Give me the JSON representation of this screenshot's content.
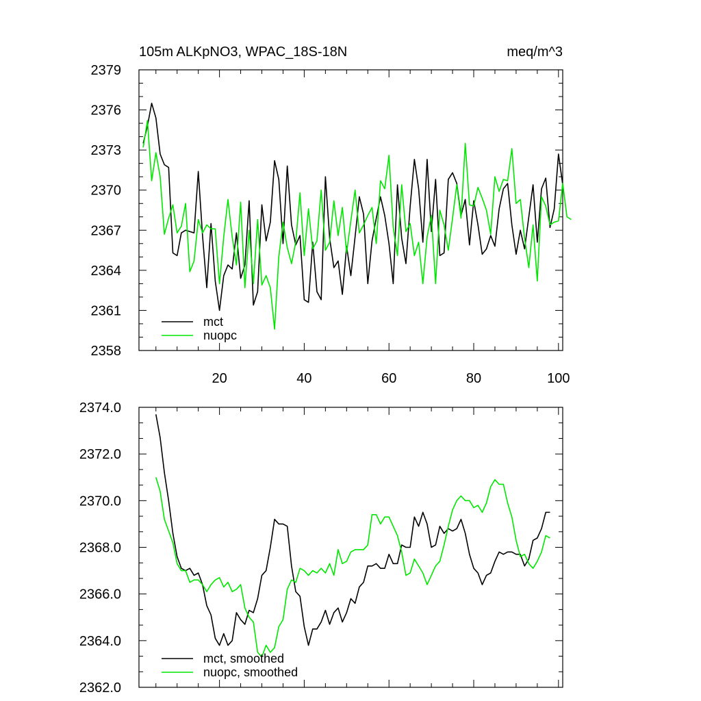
{
  "colors": {
    "mct": "#000000",
    "nuopc": "#00e600"
  },
  "chart_data": [
    {
      "type": "line",
      "title": "105m ALKpNO3, WPAC_18S-18N",
      "units": "meq/m^3",
      "xlim": [
        1,
        101
      ],
      "ylim": [
        2358,
        2379
      ],
      "x_ticks": [
        20,
        40,
        60,
        80,
        100
      ],
      "y_ticks": [
        2358,
        2361,
        2364,
        2367,
        2370,
        2373,
        2376,
        2379
      ],
      "y_tick_labels": [
        "2358",
        "2361",
        "2364",
        "2367",
        "2370",
        "2373",
        "2376",
        "2379"
      ],
      "legend_position": "bottom-left",
      "series": [
        {
          "name": "mct",
          "color": "#000000",
          "x_start": 2,
          "values": [
            2373.5,
            2374.8,
            2376.5,
            2375.4,
            2372.7,
            2371.9,
            2371.7,
            2365.3,
            2365.1,
            2366.8,
            2367.0,
            2366.9,
            2366.8,
            2371.4,
            2366.6,
            2362.7,
            2367.5,
            2363.2,
            2361.0,
            2363.6,
            2364.4,
            2364.1,
            2366.8,
            2363.4,
            2364.4,
            2369.2,
            2361.4,
            2362.4,
            2368.9,
            2366.2,
            2367.6,
            2372.2,
            2370.8,
            2366.0,
            2371.8,
            2367.4,
            2365.9,
            2366.6,
            2361.8,
            2361.6,
            2366.1,
            2362.4,
            2361.8,
            2371.0,
            2366.4,
            2364.2,
            2364.7,
            2362.2,
            2365.8,
            2363.6,
            2366.5,
            2369.5,
            2368.2,
            2363.0,
            2366.2,
            2367.9,
            2369.5,
            2368.1,
            2366.0,
            2363.0,
            2370.4,
            2366.4,
            2364.5,
            2368.8,
            2372.3,
            2370.1,
            2366.1,
            2372.3,
            2366.9,
            2370.8,
            2365.1,
            2365.3,
            2370.8,
            2371.3,
            2370.5,
            2368.1,
            2369.3,
            2365.9,
            2369.2,
            2367.4,
            2365.2,
            2365.6,
            2366.6,
            2365.8,
            2368.6,
            2370.1,
            2370.5,
            2367.4,
            2365.2,
            2367.0,
            2365.6,
            2368.0,
            2370.4,
            2366.1,
            2370.1,
            2370.9,
            2367.2,
            2368.6,
            2372.7,
            2370.4
          ]
        },
        {
          "name": "nuopc",
          "color": "#00e600",
          "x_start": 2,
          "values": [
            2373.2,
            2375.2,
            2370.7,
            2372.8,
            2371.0,
            2366.7,
            2367.9,
            2368.9,
            2366.8,
            2367.3,
            2369.0,
            2363.9,
            2364.7,
            2367.8,
            2366.8,
            2367.4,
            2367.1,
            2367.1,
            2363.0,
            2366.5,
            2369.3,
            2366.5,
            2364.4,
            2369.1,
            2362.7,
            2367.0,
            2363.0,
            2367.8,
            2362.9,
            2363.6,
            2362.7,
            2359.6,
            2365.0,
            2367.6,
            2365.7,
            2364.5,
            2366.1,
            2369.8,
            2365.1,
            2368.6,
            2365.6,
            2366.2,
            2370.0,
            2365.5,
            2366.1,
            2369.2,
            2366.6,
            2368.7,
            2365.3,
            2367.7,
            2370.0,
            2366.8,
            2367.4,
            2368.1,
            2368.7,
            2366.0,
            2370.7,
            2370.1,
            2372.6,
            2367.2,
            2365.1,
            2370.4,
            2366.9,
            2367.5,
            2365.1,
            2366.1,
            2363.0,
            2366.5,
            2368.1,
            2363.0,
            2368.5,
            2367.4,
            2365.5,
            2367.9,
            2370.4,
            2367.9,
            2373.5,
            2368.9,
            2368.8,
            2370.2,
            2369.4,
            2368.5,
            2366.7,
            2371.0,
            2369.9,
            2370.8,
            2370.7,
            2373.1,
            2369.0,
            2369.3,
            2366.4,
            2364.2,
            2367.4,
            2363.2,
            2369.5,
            2368.8,
            2367.4,
            2367.6,
            2367.7,
            2370.5,
            2368.0,
            2367.8
          ]
        }
      ]
    },
    {
      "type": "line",
      "xlim": [
        1,
        101
      ],
      "ylim": [
        2362.0,
        2374.0
      ],
      "x_ticks": [
        20,
        40,
        60,
        80,
        100
      ],
      "y_ticks": [
        2362,
        2364,
        2366,
        2368,
        2370,
        2372,
        2374
      ],
      "y_tick_labels": [
        "2362.0",
        "2364.0",
        "2366.0",
        "2368.0",
        "2370.0",
        "2372.0",
        "2374.0"
      ],
      "legend_position": "bottom-left",
      "series": [
        {
          "name": "mct, smoothed",
          "color": "#000000",
          "x_start": 5,
          "values": [
            2373.7,
            2372.7,
            2371.2,
            2370.0,
            2368.6,
            2367.6,
            2367.1,
            2367.0,
            2367.1,
            2366.8,
            2366.9,
            2366.4,
            2365.5,
            2365.1,
            2364.1,
            2363.8,
            2364.3,
            2363.8,
            2364.0,
            2365.2,
            2364.9,
            2364.7,
            2365.3,
            2365.2,
            2365.8,
            2366.8,
            2367.0,
            2368.0,
            2369.2,
            2369.0,
            2369.0,
            2368.9,
            2367.2,
            2366.1,
            2365.9,
            2364.6,
            2363.8,
            2364.5,
            2364.5,
            2364.8,
            2365.3,
            2364.7,
            2365.2,
            2365.4,
            2364.8,
            2365.2,
            2365.8,
            2365.6,
            2366.3,
            2366.5,
            2367.2,
            2367.2,
            2367.3,
            2367.1,
            2367.1,
            2367.7,
            2367.3,
            2367.3,
            2368.1,
            2368.0,
            2368.0,
            2369.3,
            2368.9,
            2369.5,
            2369.0,
            2368.0,
            2368.1,
            2368.9,
            2368.6,
            2368.8,
            2368.7,
            2368.8,
            2369.2,
            2368.6,
            2367.7,
            2367.1,
            2366.9,
            2366.4,
            2366.8,
            2366.9,
            2367.4,
            2367.8,
            2367.7,
            2367.8,
            2367.8,
            2367.7,
            2367.7,
            2367.2,
            2367.5,
            2368.3,
            2368.4,
            2368.8,
            2369.5,
            2369.5
          ]
        },
        {
          "name": "nuopc, smoothed",
          "color": "#00e600",
          "x_start": 5,
          "values": [
            2371.0,
            2370.4,
            2369.2,
            2368.7,
            2368.2,
            2367.3,
            2367.0,
            2367.0,
            2366.5,
            2366.6,
            2366.6,
            2366.4,
            2366.1,
            2366.4,
            2366.6,
            2366.7,
            2366.3,
            2366.5,
            2366.1,
            2366.2,
            2366.4,
            2365.4,
            2365.0,
            2364.8,
            2363.5,
            2363.3,
            2363.8,
            2363.5,
            2363.7,
            2364.6,
            2364.9,
            2366.2,
            2366.6,
            2366.5,
            2367.1,
            2367.0,
            2366.8,
            2367.0,
            2366.9,
            2367.1,
            2366.9,
            2367.3,
            2366.8,
            2367.9,
            2367.3,
            2367.4,
            2367.8,
            2367.9,
            2367.9,
            2367.9,
            2368.1,
            2369.4,
            2369.4,
            2369.0,
            2369.3,
            2369.3,
            2368.9,
            2368.5,
            2367.8,
            2366.8,
            2366.9,
            2367.5,
            2367.2,
            2366.9,
            2366.4,
            2366.8,
            2367.2,
            2367.4,
            2368.1,
            2368.9,
            2369.6,
            2370.0,
            2370.2,
            2370.0,
            2370.0,
            2369.7,
            2369.8,
            2369.5,
            2369.9,
            2370.6,
            2370.9,
            2370.7,
            2370.7,
            2369.9,
            2369.3,
            2368.3,
            2367.6,
            2367.7,
            2367.3,
            2367.1,
            2367.4,
            2367.8,
            2368.5,
            2368.4
          ]
        }
      ]
    }
  ]
}
